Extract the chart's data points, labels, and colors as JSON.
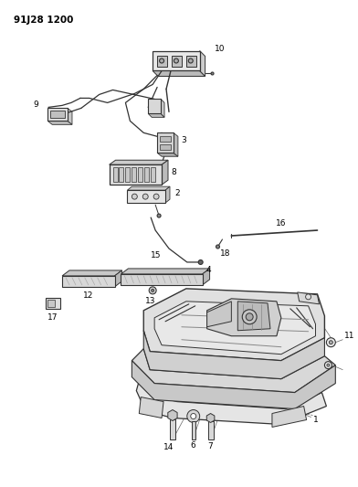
{
  "title": "91J28 1200",
  "background_color": "#ffffff",
  "line_color": "#333333",
  "text_color": "#000000",
  "fig_width": 3.92,
  "fig_height": 5.33,
  "dpi": 100,
  "label_fontsize": 6.5
}
